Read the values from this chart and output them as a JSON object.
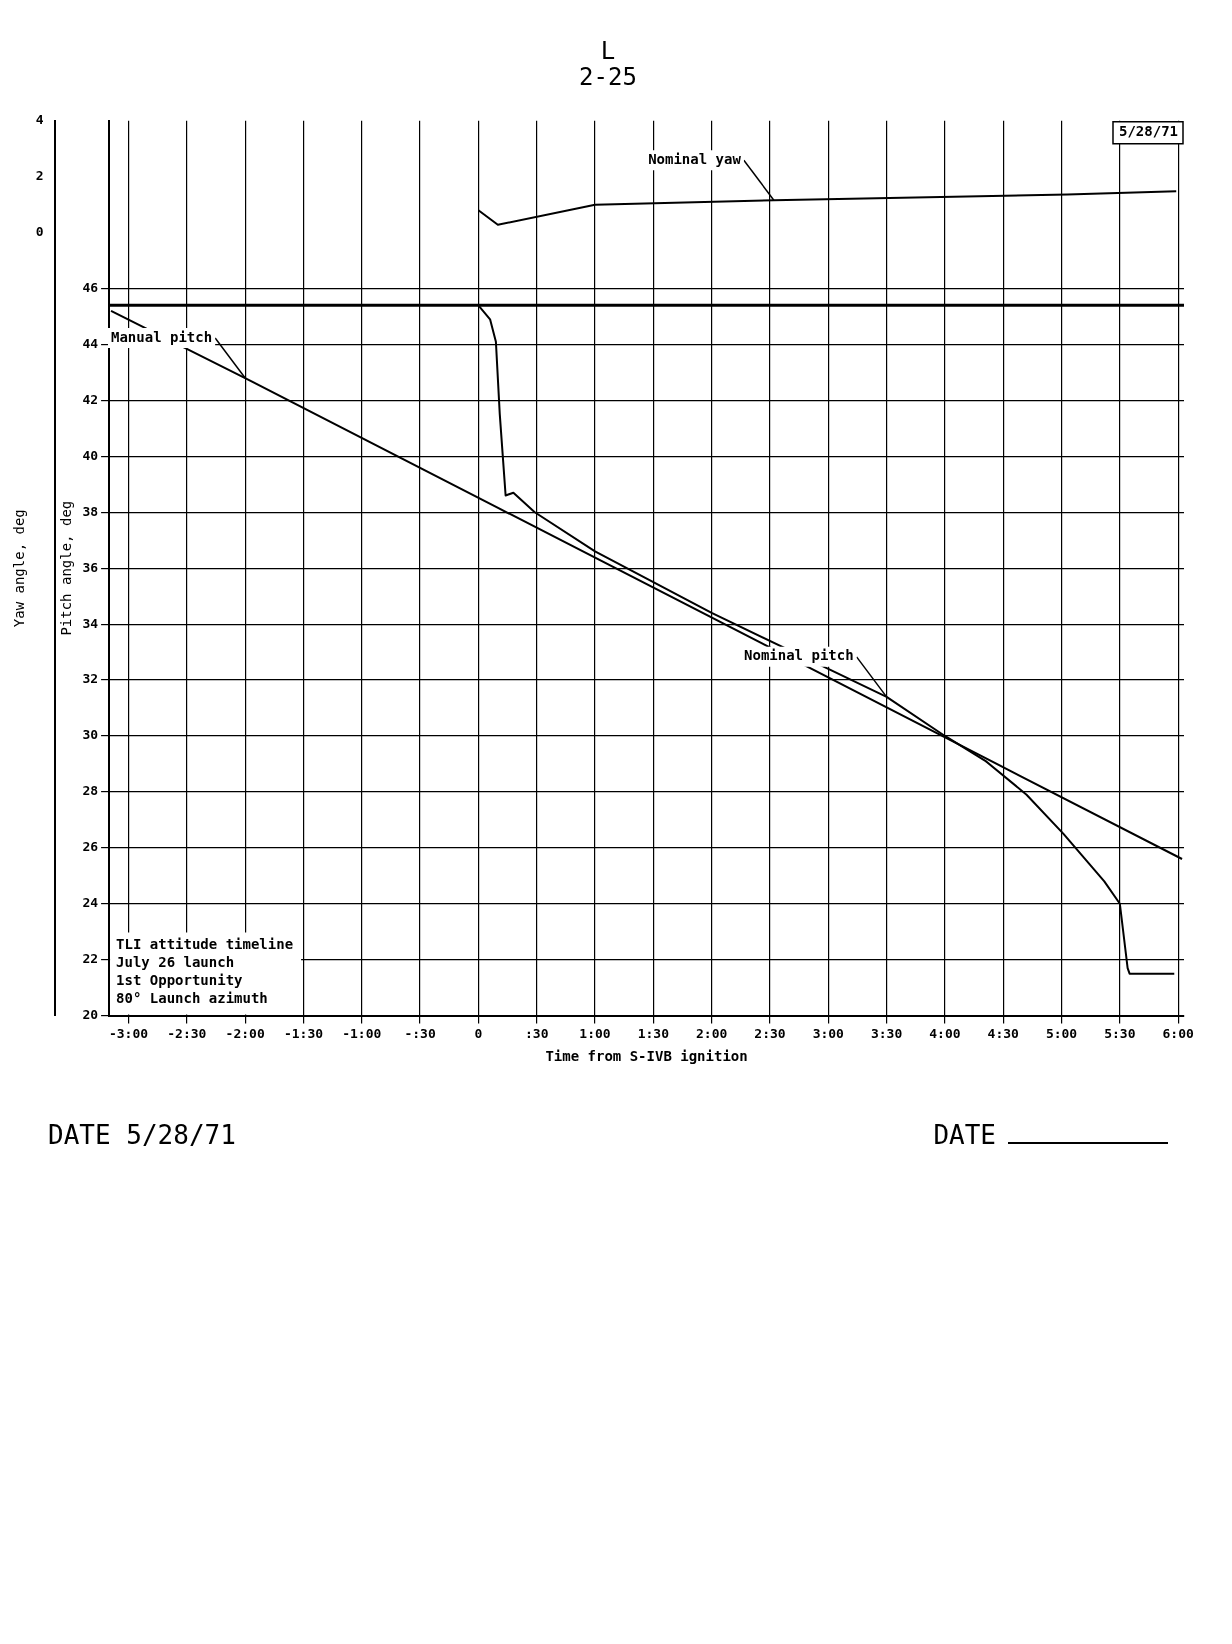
{
  "chart_data": {
    "type": "line",
    "xlabel": "Time from S-IVB ignition",
    "ylabel": "Pitch angle, deg",
    "y2label": "Yaw angle, deg",
    "xlim": [
      -190,
      363
    ],
    "xticks": [
      {
        "value": -180,
        "label": "-3:00"
      },
      {
        "value": -150,
        "label": "-2:30"
      },
      {
        "value": -120,
        "label": "-2:00"
      },
      {
        "value": -90,
        "label": "-1:30"
      },
      {
        "value": -60,
        "label": "-1:00"
      },
      {
        "value": -30,
        "label": "-:30"
      },
      0,
      {
        "value": 30,
        "label": ":30"
      },
      {
        "value": 60,
        "label": "1:00"
      },
      {
        "value": 90,
        "label": "1:30"
      },
      {
        "value": 120,
        "label": "2:00"
      },
      {
        "value": 150,
        "label": "2:30"
      },
      {
        "value": 180,
        "label": "3:00"
      },
      {
        "value": 210,
        "label": "3:30"
      },
      {
        "value": 240,
        "label": "4:00"
      },
      {
        "value": 270,
        "label": "4:30"
      },
      {
        "value": 300,
        "label": "5:00"
      },
      {
        "value": 330,
        "label": "5:30"
      },
      {
        "value": 360,
        "label": "6:00"
      }
    ],
    "ylim": [
      20,
      52
    ],
    "yticks": [
      20,
      22,
      24,
      26,
      28,
      30,
      32,
      34,
      36,
      38,
      40,
      42,
      44,
      46
    ],
    "y2lim": [
      -28,
      4
    ],
    "y2ticks": [
      0,
      2,
      4
    ],
    "grid": true,
    "legend": false,
    "marker": "none",
    "line_style": "solid",
    "ref_lines": [
      {
        "axis": "y",
        "value": 45.4,
        "color": "#000000"
      }
    ],
    "series": [
      {
        "name": "Manual pitch",
        "color": "#000000",
        "x": [
          -189,
          -120,
          362
        ],
        "values": [
          45.2,
          42.8,
          25.6
        ]
      },
      {
        "name": "Nominal pitch",
        "color": "#000000",
        "x": [
          0,
          6,
          9,
          11,
          14,
          18,
          29,
          60,
          120,
          180,
          210,
          240,
          261,
          282,
          301,
          322,
          330,
          334,
          335,
          358
        ],
        "values": [
          45.4,
          44.9,
          44.1,
          41.5,
          38.6,
          38.7,
          38.0,
          36.6,
          34.4,
          32.4,
          31.4,
          30.0,
          29.1,
          27.9,
          26.5,
          24.8,
          24.0,
          21.7,
          21.5,
          21.5
        ]
      },
      {
        "name": "Nominal yaw",
        "color": "#000000",
        "axis": "y2",
        "x": [
          0,
          10,
          60,
          152,
          303,
          359
        ],
        "values": [
          0.8,
          0.28,
          1.0,
          1.16,
          1.36,
          1.48
        ]
      }
    ],
    "annotations": [
      "L",
      "2-25",
      "DATE 5/28/71",
      "DATE",
      "5/28/71",
      "TLI attitude timeline",
      "July 26 launch",
      "1st Opportunity",
      "80° Launch azimuth"
    ]
  }
}
